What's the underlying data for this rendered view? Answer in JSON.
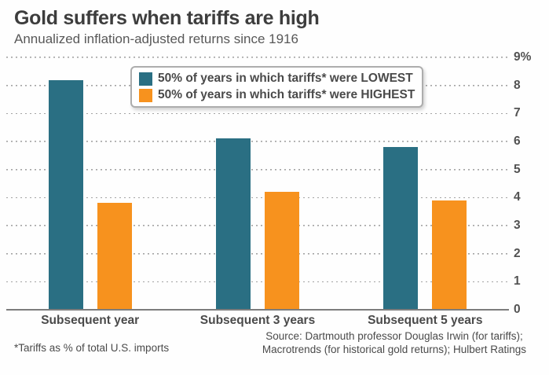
{
  "header": {
    "title": "Gold suffers when tariffs are high",
    "subtitle": "Annualized inflation-adjusted returns since 1916"
  },
  "chart_data": {
    "type": "bar",
    "title": "Gold suffers when tariffs are high",
    "subtitle": "Annualized inflation-adjusted returns since 1916",
    "categories": [
      "Subsequent year",
      "Subsequent 3 years",
      "Subsequent 5 years"
    ],
    "series": [
      {
        "name": "50% of years in which tariffs* were LOWEST",
        "color": "#2a6f83",
        "values": [
          8.2,
          6.1,
          5.8
        ]
      },
      {
        "name": "50% of years in which tariffs* were HIGHEST",
        "color": "#f7921e",
        "values": [
          3.8,
          4.2,
          3.9
        ]
      }
    ],
    "ylabel": "",
    "xlabel": "",
    "ylim": [
      0,
      9
    ],
    "yticks": [
      {
        "value": 9,
        "label": "9%"
      },
      {
        "value": 8,
        "label": "8"
      },
      {
        "value": 7,
        "label": "7"
      },
      {
        "value": 6,
        "label": "6"
      },
      {
        "value": 5,
        "label": "5"
      },
      {
        "value": 4,
        "label": "4"
      },
      {
        "value": 3,
        "label": "3"
      },
      {
        "value": 2,
        "label": "2"
      },
      {
        "value": 1,
        "label": "1"
      },
      {
        "value": 0,
        "label": "0"
      }
    ],
    "grid": "horizontal-dotted",
    "axis_side": "right",
    "legend_position": "top-center-inside"
  },
  "colors": {
    "lowest_bar": "#2a6f83",
    "highest_bar": "#f7921e",
    "gridline": "#a3a3a3",
    "axis_line": "#7d7d7d",
    "text_dark": "#3d3d3d",
    "text_medium": "#4a4a4a"
  },
  "footer": {
    "footnote": "*Tariffs as % of total U.S. imports",
    "source_lines": [
      "Source: Dartmouth professor Douglas Irwin (for tariffs);",
      "Macrotrends (for historical gold returns); Hulbert Ratings"
    ]
  }
}
